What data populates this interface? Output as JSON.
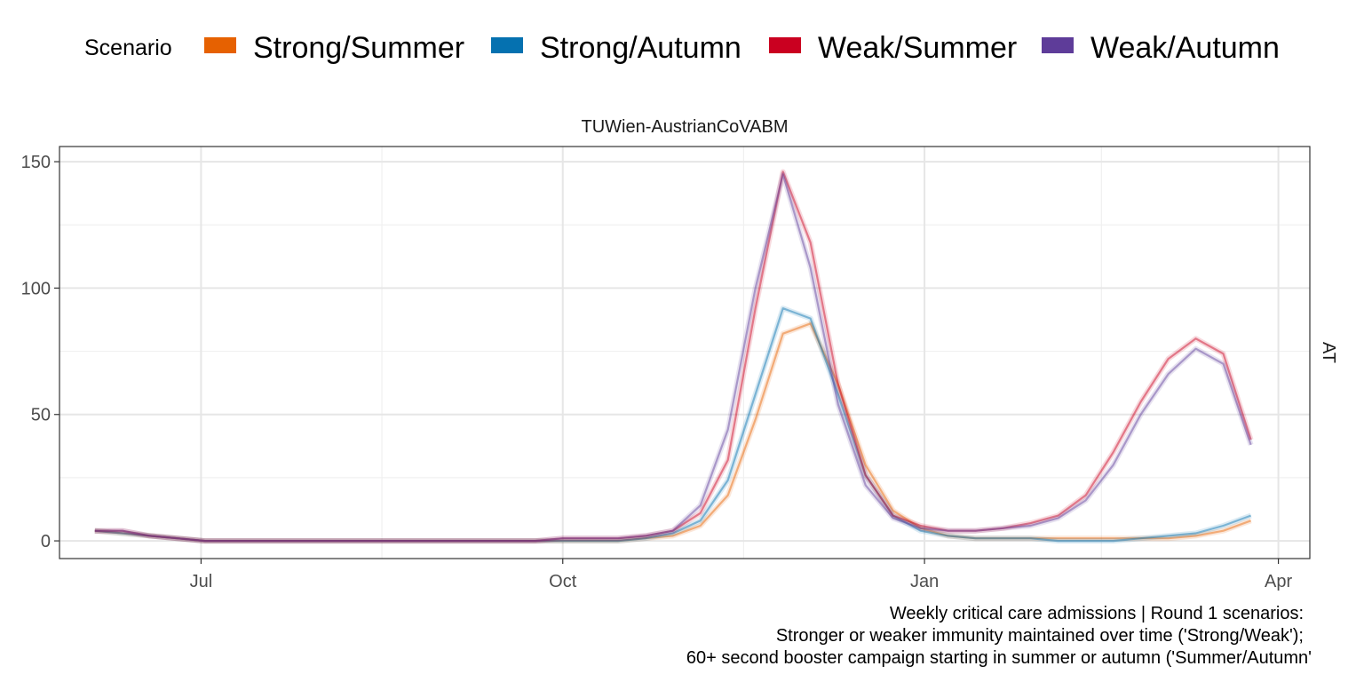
{
  "legend": {
    "title": "Scenario",
    "items": [
      {
        "label": "Strong/Summer",
        "color": "#e66101"
      },
      {
        "label": "Strong/Autumn",
        "color": "#0571b0"
      },
      {
        "label": "Weak/Summer",
        "color": "#ca0020"
      },
      {
        "label": "Weak/Autumn",
        "color": "#5e3c99"
      }
    ]
  },
  "facet_title": "TUWien-AustrianCoVABM",
  "strip_right": "AT",
  "caption": [
    "Weekly critical care admissions | Round 1 scenarios:",
    "Stronger or weaker immunity maintained over time ('Strong/Weak');",
    "60+ second booster campaign starting in summer or autumn ('Summer/Autumn'"
  ],
  "chart_data": {
    "type": "line",
    "title": "TUWien-AustrianCoVABM",
    "xlabel": "",
    "ylabel": "",
    "x_ticks": [
      "Jul",
      "Oct",
      "Jan",
      "Apr"
    ],
    "x_tick_dates": [
      "2022-07-01",
      "2022-10-01",
      "2023-01-01",
      "2023-04-01"
    ],
    "y_ticks": [
      0,
      50,
      100,
      150
    ],
    "ylim": [
      -7,
      156
    ],
    "xlim": [
      "2022-05-26",
      "2023-04-09"
    ],
    "grid": true,
    "legend_position": "top",
    "x": [
      "2022-06-04",
      "2022-06-11",
      "2022-06-18",
      "2022-06-25",
      "2022-07-02",
      "2022-07-09",
      "2022-07-16",
      "2022-07-23",
      "2022-07-30",
      "2022-08-06",
      "2022-08-13",
      "2022-08-20",
      "2022-08-27",
      "2022-09-03",
      "2022-09-10",
      "2022-09-17",
      "2022-09-24",
      "2022-10-01",
      "2022-10-08",
      "2022-10-15",
      "2022-10-22",
      "2022-10-29",
      "2022-11-05",
      "2022-11-12",
      "2022-11-19",
      "2022-11-26",
      "2022-12-03",
      "2022-12-10",
      "2022-12-17",
      "2022-12-24",
      "2022-12-31",
      "2023-01-07",
      "2023-01-14",
      "2023-01-21",
      "2023-01-28",
      "2023-02-04",
      "2023-02-11",
      "2023-02-18",
      "2023-02-25",
      "2023-03-04",
      "2023-03-11",
      "2023-03-18",
      "2023-03-25"
    ],
    "series": [
      {
        "name": "Strong/Summer",
        "values": [
          4,
          3,
          2,
          1,
          0,
          0,
          0,
          0,
          0,
          0,
          0,
          0,
          0,
          0,
          0,
          0,
          0,
          0,
          0,
          0,
          1,
          2,
          6,
          18,
          48,
          82,
          86,
          62,
          30,
          12,
          5,
          2,
          1,
          1,
          1,
          1,
          1,
          1,
          1,
          1,
          2,
          4,
          8
        ]
      },
      {
        "name": "Strong/Autumn",
        "values": [
          4,
          3,
          2,
          1,
          0,
          0,
          0,
          0,
          0,
          0,
          0,
          0,
          0,
          0,
          0,
          0,
          0,
          0,
          0,
          0,
          1,
          3,
          8,
          24,
          58,
          92,
          88,
          58,
          26,
          10,
          4,
          2,
          1,
          1,
          1,
          0,
          0,
          0,
          1,
          2,
          3,
          6,
          10
        ]
      },
      {
        "name": "Weak/Summer",
        "values": [
          4,
          4,
          2,
          1,
          0,
          0,
          0,
          0,
          0,
          0,
          0,
          0,
          0,
          0,
          0,
          0,
          0,
          1,
          1,
          1,
          2,
          4,
          11,
          32,
          92,
          146,
          118,
          62,
          26,
          10,
          6,
          4,
          4,
          5,
          7,
          10,
          18,
          35,
          55,
          72,
          80,
          74,
          40
        ]
      },
      {
        "name": "Weak/Autumn",
        "values": [
          4,
          4,
          2,
          1,
          0,
          0,
          0,
          0,
          0,
          0,
          0,
          0,
          0,
          0,
          0,
          0,
          0,
          1,
          1,
          1,
          2,
          4,
          14,
          44,
          100,
          145,
          108,
          54,
          22,
          9,
          5,
          4,
          4,
          5,
          6,
          9,
          16,
          30,
          50,
          66,
          76,
          70,
          38
        ]
      }
    ]
  }
}
